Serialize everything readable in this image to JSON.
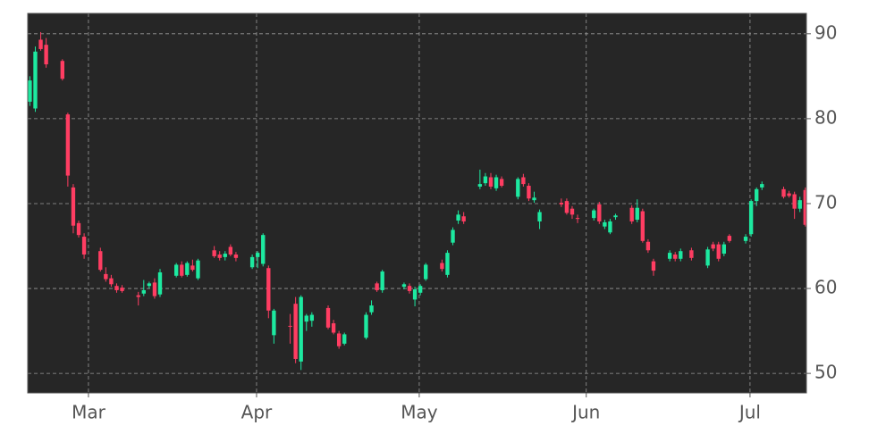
{
  "chart_data": {
    "type": "candlestick",
    "x": [
      0,
      1,
      2,
      3,
      6,
      7,
      8,
      9,
      10,
      13,
      14,
      15,
      16,
      17,
      20,
      21,
      22,
      23,
      24,
      27,
      28,
      29,
      30,
      31,
      34,
      35,
      36,
      37,
      38,
      41,
      42,
      43,
      44,
      45,
      48,
      49,
      50,
      51,
      52,
      55,
      56,
      57,
      58,
      62,
      63,
      64,
      65,
      69,
      70,
      71,
      72,
      73,
      76,
      77,
      78,
      79,
      80,
      83,
      84,
      85,
      86,
      87,
      90,
      91,
      92,
      93,
      94,
      98,
      99,
      100,
      101,
      104,
      105,
      106,
      107,
      108,
      111,
      112,
      113,
      114,
      115,
      118,
      119,
      120,
      122,
      125,
      126,
      127,
      128,
      129,
      132,
      133,
      134,
      135,
      139,
      140,
      141,
      142,
      143
    ],
    "open": [
      82,
      81.2,
      89.3,
      88.7,
      86.8,
      80.5,
      71.9,
      67.7,
      66.1,
      64.4,
      61.7,
      61.2,
      60.3,
      60.1,
      59.2,
      59.4,
      60.3,
      60.7,
      59.3,
      61.5,
      62.8,
      61.6,
      62.7,
      61.2,
      64.5,
      64,
      63.7,
      64.9,
      64,
      62.5,
      63.7,
      62.9,
      62.4,
      54.5,
      55.6,
      58.2,
      51.4,
      56.1,
      56.2,
      57.7,
      55.9,
      54.7,
      53.5,
      54.2,
      57.2,
      60.6,
      59.8,
      60.2,
      60.3,
      58.7,
      59.5,
      61.1,
      63,
      61.6,
      65.4,
      68,
      68.5,
      72,
      72.4,
      73.1,
      71.8,
      72.9,
      70.8,
      73.1,
      72.1,
      70.4,
      67.9,
      70.1,
      70.3,
      69.4,
      68.3,
      68.3,
      69.9,
      67.3,
      66.6,
      68.4,
      69.5,
      68.1,
      69.1,
      65.5,
      63.2,
      63.5,
      64,
      63.5,
      64.5,
      62.7,
      65.2,
      65.2,
      64.1,
      66.2,
      65.6,
      66.4,
      70.3,
      71.9,
      71.7,
      71.2,
      71.1,
      69.4,
      71.6
    ],
    "high": [
      85,
      88.5,
      90.2,
      89.5,
      87,
      80.7,
      72.3,
      68,
      66.5,
      64.8,
      62.5,
      61.6,
      60.6,
      60.4,
      59.6,
      61,
      60.8,
      61.2,
      62.3,
      63,
      63.2,
      63.2,
      63.4,
      63.5,
      65,
      64.4,
      64.4,
      65.2,
      64.3,
      64,
      64.4,
      66.5,
      62.7,
      57.6,
      57,
      59,
      59.2,
      57,
      57.2,
      58,
      56.3,
      55,
      54.8,
      57.2,
      58.6,
      60.8,
      62.2,
      60.7,
      60.6,
      60.2,
      60.5,
      63,
      63.4,
      64.5,
      67.2,
      69.2,
      69,
      74,
      73.6,
      73.6,
      73.4,
      73.2,
      73.1,
      73.5,
      72.4,
      71.4,
      69.3,
      70.6,
      70.6,
      69.7,
      68.7,
      69.4,
      70.2,
      68.1,
      68.2,
      68.8,
      69.8,
      70.5,
      69.4,
      65.8,
      63.5,
      64.5,
      64.3,
      64.7,
      64.8,
      64.9,
      65.5,
      65.5,
      65.5,
      66.4,
      66.4,
      70.5,
      71.9,
      72.6,
      72,
      71.5,
      71.4,
      70.8,
      71.9
    ],
    "low": [
      81.5,
      80.8,
      88,
      86,
      84.5,
      72,
      66.5,
      66,
      63.5,
      62,
      60.8,
      60.2,
      59.5,
      59.5,
      58,
      59.1,
      60,
      58.8,
      59,
      61.3,
      61.3,
      61.4,
      62,
      61,
      63.6,
      63.3,
      63.3,
      63.8,
      63.2,
      62.3,
      62.4,
      62.6,
      56.5,
      53.5,
      53.5,
      51.2,
      50.4,
      55,
      55.5,
      55.2,
      54.6,
      52.9,
      53.3,
      54,
      56.9,
      59.6,
      59.5,
      59.9,
      59.4,
      57.9,
      59.2,
      60.9,
      62,
      61.3,
      65.1,
      67.6,
      67.6,
      71.7,
      72.1,
      71.7,
      71.5,
      71.9,
      70.5,
      72,
      70.3,
      70.1,
      67,
      69.6,
      68.7,
      68.2,
      67.7,
      68,
      67.6,
      67,
      66.4,
      68.1,
      67.6,
      67.8,
      65.4,
      64.2,
      61.5,
      63.2,
      63.2,
      63.2,
      63.3,
      62.4,
      64.4,
      63.2,
      63.8,
      65.4,
      65.3,
      66.1,
      69.7,
      71.6,
      70.6,
      70.7,
      68.2,
      69,
      67.3
    ],
    "close": [
      84.5,
      87.9,
      88.2,
      86.4,
      84.7,
      73.3,
      67.4,
      66.3,
      64,
      62.2,
      61.1,
      60.5,
      59.8,
      59.7,
      59,
      59.8,
      60.6,
      59.1,
      61.9,
      62.8,
      61.5,
      63,
      62.2,
      63.3,
      63.8,
      63.6,
      64.1,
      64,
      63.6,
      63.7,
      64.2,
      66.3,
      57.4,
      57.4,
      55.5,
      51.7,
      59,
      56.8,
      56.9,
      55.4,
      54.8,
      53.2,
      54.6,
      56.9,
      58,
      59.8,
      62,
      60.5,
      59.7,
      59.9,
      60.3,
      62.8,
      62.3,
      64.2,
      66.9,
      68.7,
      67.9,
      72.3,
      73.2,
      72,
      73.1,
      72.1,
      72.9,
      72.3,
      70.6,
      70.7,
      69,
      69.9,
      68.9,
      68.7,
      68.2,
      69.2,
      67.9,
      67.8,
      67.9,
      68.6,
      67.9,
      69.5,
      65.6,
      64.5,
      62.1,
      64.2,
      63.5,
      64.4,
      63.6,
      64.6,
      64.7,
      63.5,
      65.2,
      65.6,
      66.1,
      70.3,
      71.7,
      72.3,
      70.8,
      70.9,
      69.4,
      70.4,
      67.5
    ],
    "up_color": "#1de9a0",
    "down_color": "#ff3d62",
    "background": "#262626",
    "xlim": [
      -0.4,
      143.2
    ],
    "xticks": [
      {
        "value": 10.8,
        "label": "Mar"
      },
      {
        "value": 41.8,
        "label": "Apr"
      },
      {
        "value": 71.8,
        "label": "May"
      },
      {
        "value": 102.6,
        "label": "Jun"
      },
      {
        "value": 132.8,
        "label": "Jul"
      }
    ],
    "ylim": [
      47.7,
      92.4
    ],
    "yticks": [
      50,
      60,
      70,
      80,
      90
    ],
    "grid": true
  }
}
